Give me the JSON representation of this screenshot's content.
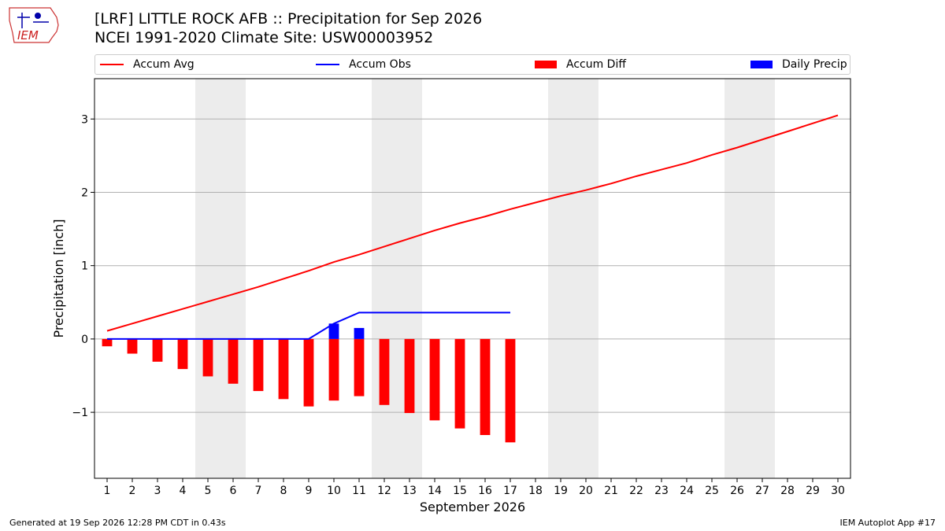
{
  "header": {
    "title_line1": "[LRF] LITTLE ROCK AFB :: Precipitation for Sep 2026",
    "title_line2": "NCEI 1991-2020 Climate Site: USW00003952",
    "logo_text": "IEM"
  },
  "footer": {
    "generated": "Generated at 19 Sep 2026 12:28 PM CDT in 0.43s",
    "app": "IEM Autoplot App #17"
  },
  "legend": [
    {
      "label": "Accum Avg",
      "kind": "line",
      "color": "#ff0000"
    },
    {
      "label": "Accum Obs",
      "kind": "line",
      "color": "#0000ff"
    },
    {
      "label": "Accum Diff",
      "kind": "box",
      "color": "#ff0000"
    },
    {
      "label": "Daily Precip",
      "kind": "box",
      "color": "#0000ff"
    }
  ],
  "chart_data": {
    "type": "bar",
    "xlabel": "September 2026",
    "ylabel": "Precipitation [inch]",
    "xlim": [
      0.5,
      30.5
    ],
    "ylim": [
      -1.9,
      3.55
    ],
    "yticks": [
      -1,
      0,
      1,
      2,
      3
    ],
    "ytick_labels": [
      "−1",
      "0",
      "1",
      "2",
      "3"
    ],
    "x": [
      1,
      2,
      3,
      4,
      5,
      6,
      7,
      8,
      9,
      10,
      11,
      12,
      13,
      14,
      15,
      16,
      17,
      18,
      19,
      20,
      21,
      22,
      23,
      24,
      25,
      26,
      27,
      28,
      29,
      30
    ],
    "grid": "horizontal",
    "weekend_shading": [
      [
        4.5,
        6.5
      ],
      [
        11.5,
        13.5
      ],
      [
        18.5,
        20.5
      ],
      [
        25.5,
        27.5
      ]
    ],
    "series": [
      {
        "name": "Accum Avg",
        "kind": "line",
        "color": "#ff0000",
        "x": [
          1,
          2,
          3,
          4,
          5,
          6,
          7,
          8,
          9,
          10,
          11,
          12,
          13,
          14,
          15,
          16,
          17,
          18,
          19,
          20,
          21,
          22,
          23,
          24,
          25,
          26,
          27,
          28,
          29,
          30
        ],
        "values": [
          0.11,
          0.21,
          0.31,
          0.41,
          0.51,
          0.61,
          0.71,
          0.82,
          0.93,
          1.05,
          1.15,
          1.26,
          1.37,
          1.48,
          1.58,
          1.67,
          1.77,
          1.86,
          1.95,
          2.03,
          2.12,
          2.22,
          2.31,
          2.4,
          2.51,
          2.61,
          2.72,
          2.83,
          2.94,
          3.05
        ]
      },
      {
        "name": "Accum Obs",
        "kind": "line",
        "color": "#0000ff",
        "x": [
          1,
          2,
          3,
          4,
          5,
          6,
          7,
          8,
          9,
          10,
          11,
          12,
          13,
          14,
          15,
          16,
          17
        ],
        "values": [
          0,
          0,
          0,
          0,
          0,
          0,
          0,
          0,
          0,
          0.21,
          0.36,
          0.36,
          0.36,
          0.36,
          0.36,
          0.36,
          0.36
        ]
      },
      {
        "name": "Accum Diff",
        "kind": "bar",
        "color": "#ff0000",
        "x": [
          1,
          2,
          3,
          4,
          5,
          6,
          7,
          8,
          9,
          10,
          11,
          12,
          13,
          14,
          15,
          16,
          17
        ],
        "values": [
          -0.1,
          -0.2,
          -0.31,
          -0.41,
          -0.51,
          -0.61,
          -0.71,
          -0.82,
          -0.92,
          -0.84,
          -0.78,
          -0.9,
          -1.01,
          -1.11,
          -1.22,
          -1.31,
          -1.41
        ]
      },
      {
        "name": "Daily Precip",
        "kind": "bar",
        "color": "#0000ff",
        "x": [
          10,
          11
        ],
        "values": [
          0.21,
          0.15
        ]
      }
    ]
  }
}
